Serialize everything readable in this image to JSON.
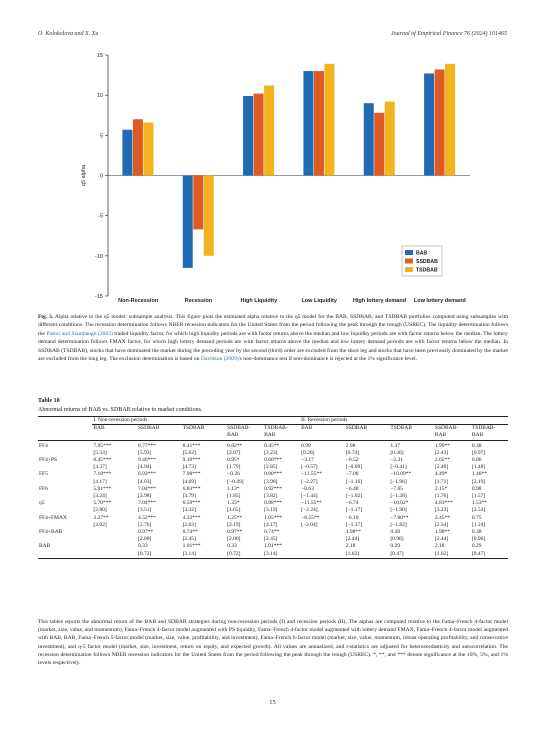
{
  "header": {
    "authors": "O. Kolokolova and X. Xu",
    "journal": "Journal of Empirical Finance 76 (2024) 101465"
  },
  "chart_data": {
    "type": "bar",
    "ylabel": "q5 alpha",
    "ylim": [
      -15,
      15
    ],
    "yticks": [
      -15,
      -10,
      -5,
      0,
      5,
      10,
      15
    ],
    "categories": [
      "Non-Recession",
      "Recession",
      "High Liquidity",
      "Low Liquidity",
      "High lottery demand",
      "Low lottery demand"
    ],
    "series": [
      {
        "name": "BAB",
        "color": "#1f6bb4",
        "values": [
          5.7,
          -11.5,
          9.9,
          13.0,
          9.0,
          12.7
        ]
      },
      {
        "name": "SSDBAB",
        "color": "#e05a24",
        "values": [
          7.0,
          -6.7,
          10.2,
          13.0,
          7.8,
          13.2
        ]
      },
      {
        "name": "TSDBAB",
        "color": "#f3b31e",
        "values": [
          6.6,
          -10.0,
          11.2,
          13.9,
          9.2,
          13.9
        ]
      }
    ],
    "legend_position": "bottom-right",
    "grid": false
  },
  "caption": {
    "label": "Fig. 3.",
    "text_1": "Alpha relative to the q5 model: subsample analysis. This figure plots the estimated alpha relative to the q5 model for the BAB, SSDBAB, and TSDBAB portfolios computed using subsamples with different conditions. The recession determination follows NBER recession indicators for the United States from the period following the peak through the trough (USREC). The liquidity determination follows the",
    "link_1": "Pastor and Stambaugh (2003)",
    "text_2": "traded liquidity factor, for which high liquidity periods are with factor returns above the median and low liquidity periods are with factor returns below the median. The lottery demand determination follows FMAX factor, for which high lottery demand periods are with factor returns above the median and low lottery demand periods are with factor returns below the median. In SSDBAB (TSDBAB), stocks that have dominated the market during the preceding year by the second (third) order are excluded from the short leg and stocks that have been previously dominated by the market are excluded from the long leg. The exclusion determination is based on",
    "link_2": "Davidson (2009)",
    "text_3": "'s non-dominance test if non-dominance is rejected at the 1% significance level."
  },
  "table": {
    "title": "Table 10",
    "subtitle": "Abnormal returns of BAB vs. SDBAB relative to market conditions.",
    "group_1": "I. Non-recession periods",
    "group_2": "II. Recession periods",
    "columns": [
      "BAB",
      "SSDBAB",
      "TSDBAB",
      "SSDBAB-\nBAB",
      "TSDBAB-\nBAB",
      "BAB",
      "SSDBAB",
      "TSDBAB",
      "SSDBAB-\nBAB",
      "TSDBAB-\nBAB"
    ],
    "rows": [
      {
        "name": "FF4",
        "vals": [
          "7.95***",
          "8.77***",
          "8.41***",
          "0.82**",
          "0.45**",
          "0.99",
          "2.98",
          "1.37",
          "1.99**",
          "0.38"
        ],
        "tstats": [
          "[5.33]",
          "[5.93]",
          "[5.62]",
          "[2.07]",
          "[2.23]",
          "[0.26]",
          "[0.74]",
          "[0.36]",
          "[2.43]",
          "[0.97]"
        ]
      },
      {
        "name": "FF4+PS",
        "vals": [
          "8.45***",
          "9.40***",
          "9.10***",
          "0.95*",
          "0.66***",
          "−3.17",
          "−0.52",
          "−2.31",
          "2.65**",
          "0.86"
        ],
        "tstats": [
          "[4.37]",
          "[4.94]",
          "[4.73]",
          "[1.79]",
          "[2.85]",
          "[−0.57]",
          "[−0.09]",
          "[−0.41]",
          "[2.40]",
          "[1.48]"
        ]
      },
      {
        "name": "FF5",
        "vals": [
          "7.18***",
          "6.93***",
          "7.98***",
          "−0.26",
          "0.80***",
          "−11.55**",
          "−7.06",
          "−10.09**",
          "4.49*",
          "1.46**"
        ],
        "tstats": [
          "[4.17]",
          "[4.03]",
          "[4.69]",
          "[−0.49]",
          "[3.98]",
          "[−2.27]",
          "[−1.16]",
          "[−1.96]",
          "[1.71]",
          "[2.19]"
        ]
      },
      {
        "name": "FF6",
        "vals": [
          "5.91***",
          "7.04***",
          "6.83***",
          "1.13*",
          "0.92***",
          "−8.63",
          "−6.48",
          "−7.65",
          "2.15*",
          "0.98"
        ],
        "tstats": [
          "[3.24]",
          "[3.98]",
          "[3.79]",
          "[1.85]",
          "[3.82]",
          "[−1.44]",
          "[−1.02]",
          "[−1.28]",
          "[1.76]",
          "[1.57]"
        ]
      },
      {
        "name": "q5",
        "vals": [
          "5.70***",
          "7.04***",
          "6.59***",
          "1.33*",
          "0.88***",
          "−11.55**",
          "−6.74",
          "−10.02*",
          "4.81***",
          "1.53**"
        ],
        "tstats": [
          "[2.80]",
          "[3.51]",
          "[3.32]",
          "[1.65]",
          "[3.19]",
          "[−2.24]",
          "[−1.17]",
          "[−1.90]",
          "[3.23]",
          "[2.53]"
        ]
      },
      {
        "name": "FF4+FMAX",
        "vals": [
          "3.27**",
          "4.52***",
          "4.32***",
          "1.25**",
          "1.05***",
          "−8.55**",
          "−6.10",
          "−7.80**",
          "2.45**",
          "0.75"
        ],
        "tstats": [
          "[2.02]",
          "[2.76]",
          "[2.63]",
          "[2.19]",
          "[4.17]",
          "[−2.04]",
          "[−1.37]",
          "[−1.82]",
          "[2.34]",
          "[1.24]"
        ]
      },
      {
        "name": "FF4+BAB",
        "vals": [
          "",
          "0.97**",
          "0.74**",
          "0.97**",
          "0.74**",
          "",
          "1.98**",
          "0.38",
          "1.98**",
          "0.38"
        ],
        "tstats": [
          "",
          "[2.00]",
          "[2.45]",
          "[2.00]",
          "[2.45]",
          "",
          "[2.44]",
          "[0.96]",
          "[2.44]",
          "[0.96]"
        ]
      },
      {
        "name": "BAB",
        "vals": [
          "",
          "0.33",
          "1.01***",
          "0.33",
          "1.01***",
          "",
          "2.18",
          "0.29",
          "2.18",
          "0.29"
        ],
        "tstats": [
          "",
          "[0.72]",
          "[3.14]",
          "[0.72]",
          "[3.14]",
          "",
          "[1.62]",
          "[0.47]",
          "[1.62]",
          "[0.47]"
        ]
      }
    ],
    "note": "This tables reports the abnormal return of the BAB and SDBAB strategies during non-recession periods (I) and recession periods (II). The alphas are computed relative to the Fama–French 4-factor model (market, size, value, and momentum), Fama–French 4-factor model augmented with PS liquidity, Fama–French 4-factor model augmented with lottery demand FMAX, Fama–French 4-factor model augmented with BAB, BAB, Fama–French 5-factor model (market, size, value, profitability, and investment), Fama–French 6-factor model (market, size, value, momentum, robust operating profitability, and conservative investment), and q-5 factor model (market, size, investment, return on equity, and expected growth). All values are annualized, and t-statistics are adjusted for heteroscedasticity and autocorrelation. The recession determination follows NBER recession indicators for the United States from the period following the peak through the trough (USREC). *, **, and *** denote significance at the 10%, 5%, and 1% levels respectively."
  },
  "page_number": "15"
}
